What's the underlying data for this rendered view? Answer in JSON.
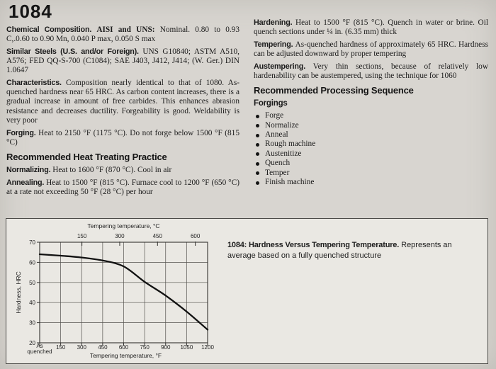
{
  "page": {
    "title": "1084"
  },
  "left_column": {
    "paragraphs": [
      {
        "lead": "Chemical Composition.",
        "lead2": "AISI and UNS:",
        "text": "Nominal. 0.80 to 0.93 C,.0.60 to 0.90 Mn, 0.040 P max, 0.050 S max"
      },
      {
        "lead": "Similar Steels (U.S. and/or Foreign).",
        "text": "UNS G10840; ASTM A510, A576; FED QQ-S-700 (C1084); SAE J403, J412, J414; (W. Ger.) DIN 1.0647"
      },
      {
        "lead": "Characteristics.",
        "text": "Composition nearly identical to that of 1080. As-quenched hardness near 65 HRC. As carbon content increases, there is a gradual increase in amount of free carbides. This enhances abrasion resistance and decreases ductility. Forgeability is good. Weldability is very poor"
      },
      {
        "lead": "Forging.",
        "text": "Heat to 2150 °F (1175 °C). Do not forge below 1500 °F (815 °C)"
      }
    ],
    "heat_treating_heading": "Recommended Heat Treating Practice",
    "heat_paragraphs": [
      {
        "lead": "Normalizing.",
        "text": "Heat to 1600 °F (870 °C). Cool in air"
      },
      {
        "lead": "Annealing.",
        "text": "Heat to 1500 °F (815 °C). Furnace cool to 1200 °F (650 °C) at a rate not exceeding 50 °F (28 °C) per hour"
      }
    ]
  },
  "right_column": {
    "paragraphs": [
      {
        "lead": "Hardening.",
        "text": "Heat to 1500 °F (815 °C). Quench in water or brine. Oil quench sections under ¼ in. (6.35 mm) thick"
      },
      {
        "lead": "Tempering.",
        "text": "As-quenched hardness of approximately 65 HRC. Hardness can be adjusted downward by proper tempering"
      },
      {
        "lead": "Austempering.",
        "text": "Very thin sections, because of relatively low hardenability can be austempered, using the technique for 1060"
      }
    ],
    "processing_heading": "Recommended Processing Sequence",
    "forgings_label": "Forgings",
    "sequence": [
      "Forge",
      "Normalize",
      "Anneal",
      "Rough machine",
      "Austenitize",
      "Quench",
      "Temper",
      "Finish machine"
    ]
  },
  "figure": {
    "caption_bold": "1084: Hardness Versus Tempering Temperature.",
    "caption_text": "Represents an average based on a fully quenched structure"
  },
  "chart_data": {
    "type": "line",
    "title": "",
    "x_axis_bottom": {
      "label": "Tempering temperature, °F",
      "range": [
        0,
        1200
      ],
      "ticks": [
        0,
        150,
        300,
        450,
        600,
        750,
        900,
        1050,
        1200
      ],
      "zero_tick_label_line1": "As",
      "zero_tick_label_line2": "quenched"
    },
    "x_axis_top": {
      "label": "Tempering temperature, °C",
      "ticks": [
        150,
        300,
        450,
        600
      ]
    },
    "y_axis": {
      "label": "Hardness, HRC",
      "range": [
        20,
        70
      ],
      "ticks": [
        20,
        30,
        40,
        50,
        60,
        70
      ]
    },
    "grid": true,
    "series": [
      {
        "name": "hardness-vs-tempering-temperature",
        "points": [
          [
            0,
            64
          ],
          [
            150,
            63.3
          ],
          [
            300,
            62.4
          ],
          [
            450,
            60.9
          ],
          [
            600,
            58
          ],
          [
            750,
            50.3
          ],
          [
            900,
            43.5
          ],
          [
            1050,
            35.5
          ],
          [
            1200,
            26.5
          ]
        ]
      }
    ],
    "colors": {
      "curve": "#111111",
      "grid": "#55534f",
      "border": "#333230",
      "text": "#222222"
    }
  }
}
